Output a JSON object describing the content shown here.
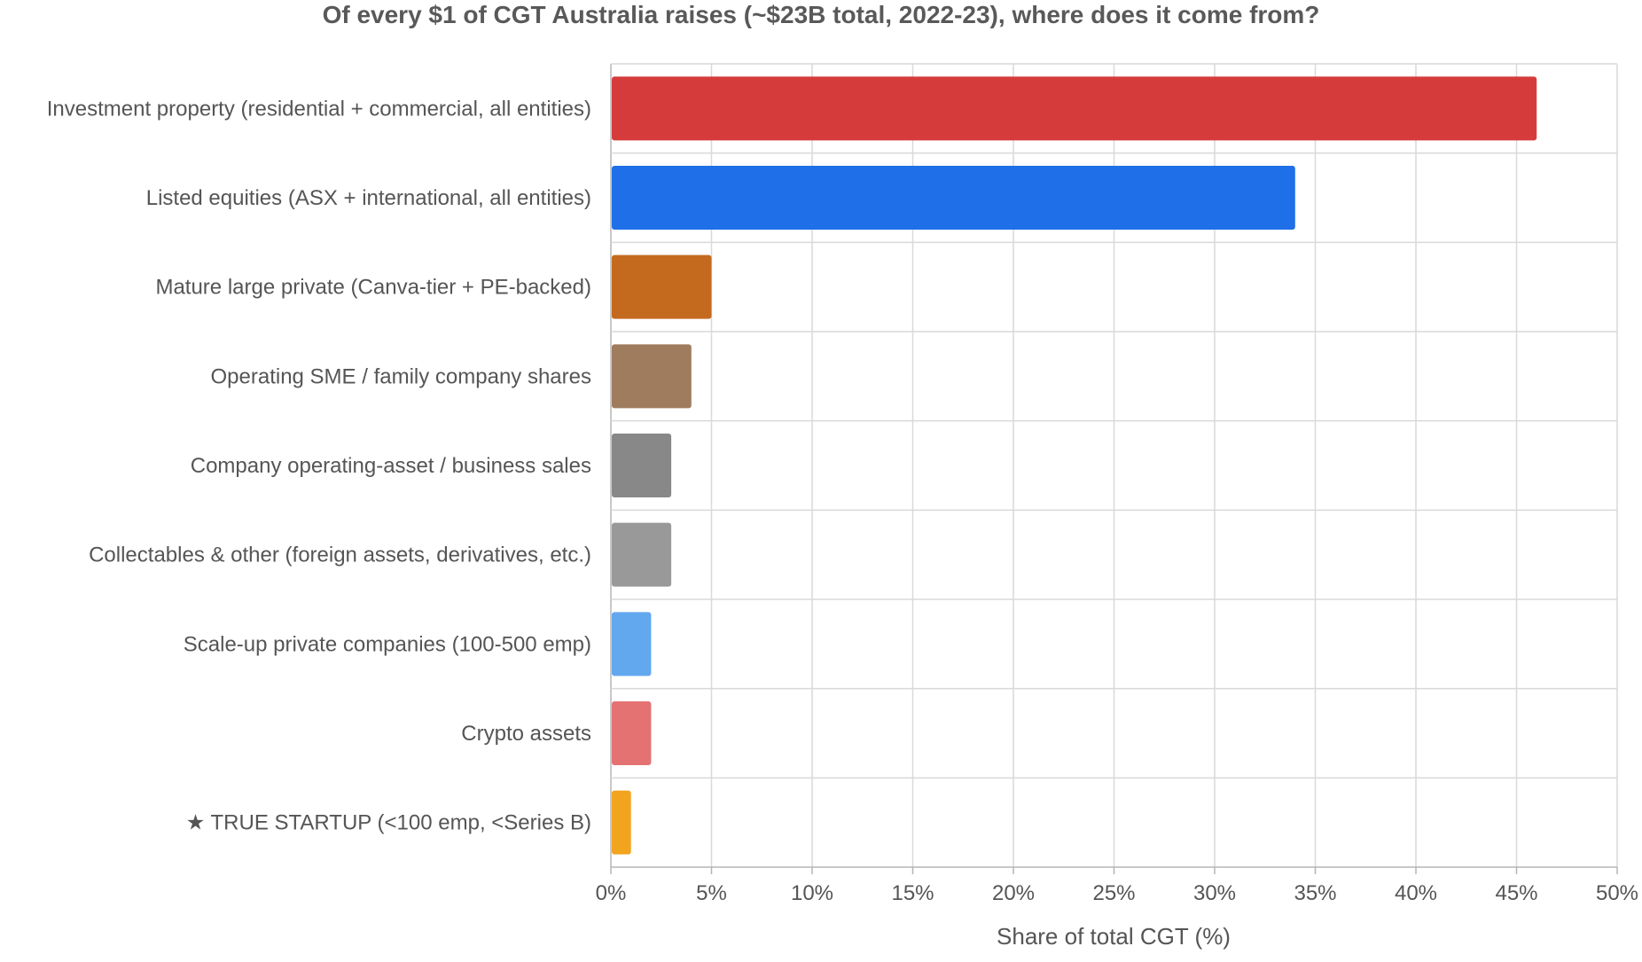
{
  "chart_data": {
    "type": "bar",
    "orientation": "horizontal",
    "title": "Of every $1 of CGT Australia raises (~$23B total, 2022-23), where does it come from?",
    "xlabel": "Share of total CGT (%)",
    "ylabel": "",
    "xlim": [
      0,
      50
    ],
    "x_ticks": [
      0,
      5,
      10,
      15,
      20,
      25,
      30,
      35,
      40,
      45,
      50
    ],
    "x_tick_labels": [
      "0%",
      "5%",
      "10%",
      "15%",
      "20%",
      "25%",
      "30%",
      "35%",
      "40%",
      "45%",
      "50%"
    ],
    "grid": true,
    "legend": "none",
    "categories": [
      "Investment property (residential + commercial, all entities)",
      "Listed equities (ASX + international, all entities)",
      "Mature large private (Canva-tier + PE-backed)",
      "Operating SME / family company shares",
      "Company operating-asset / business sales",
      "Collectables & other (foreign assets, derivatives, etc.)",
      "Scale-up private companies (100-500 emp)",
      "Crypto assets",
      "★ TRUE STARTUP (<100 emp, <Series B)"
    ],
    "values": [
      46,
      34,
      5,
      4,
      3,
      3,
      2,
      2,
      1
    ],
    "colors": [
      "#d63b3b",
      "#1f6fe8",
      "#c46a1f",
      "#a07c5e",
      "#888888",
      "#999999",
      "#62a8ee",
      "#e57272",
      "#f2a41f"
    ]
  }
}
